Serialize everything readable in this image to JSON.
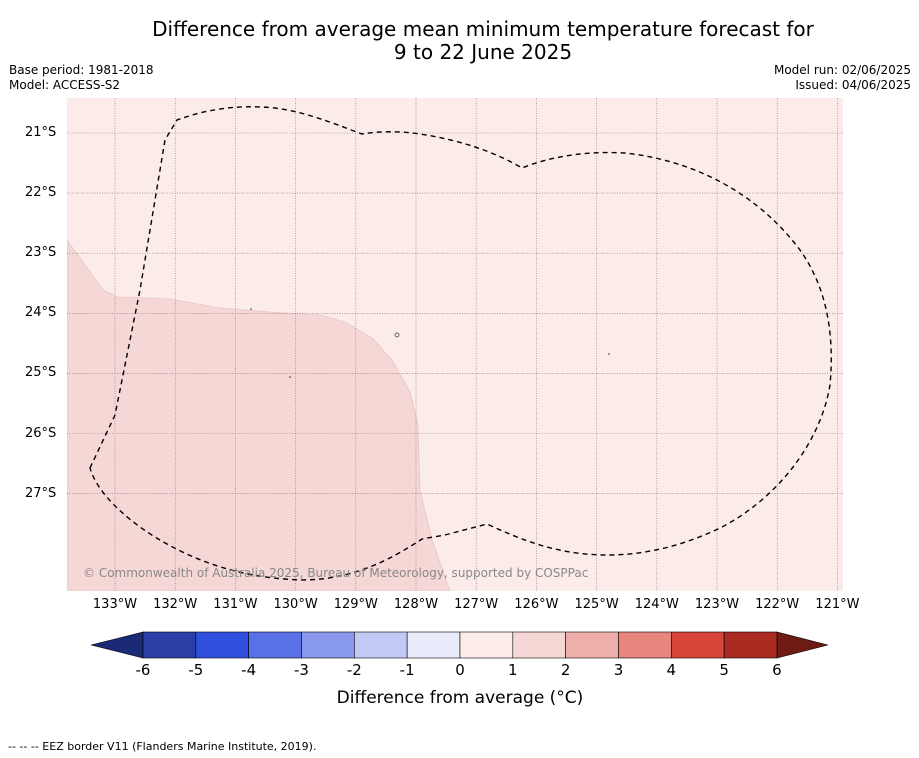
{
  "title": {
    "line1": "Difference from average mean minimum temperature forecast for",
    "line2": "9 to 22 June 2025"
  },
  "meta_left": {
    "base_period": "Base period: 1981-2018",
    "model": "Model: ACCESS-S2"
  },
  "meta_right": {
    "model_run": "Model run: 02/06/2025",
    "issued": "Issued: 04/06/2025"
  },
  "map": {
    "lat_labels": [
      "21°S",
      "22°S",
      "23°S",
      "24°S",
      "25°S",
      "26°S",
      "27°S"
    ],
    "lon_labels": [
      "133°W",
      "132°W",
      "131°W",
      "130°W",
      "129°W",
      "128°W",
      "127°W",
      "126°W",
      "125°W",
      "124°W",
      "123°W",
      "122°W",
      "121°W"
    ],
    "copyright": "© Commonwealth of Australia 2025, Bureau of Meteorology, supported by COSPPac",
    "regions": [
      {
        "category": "0 to 1",
        "color": "#fbecea"
      },
      {
        "category": "1 to 2",
        "color": "#f5d7d6"
      }
    ]
  },
  "colorbar": {
    "label": "Difference from average (°C)",
    "ticks": [
      "-6",
      "-5",
      "-4",
      "-3",
      "-2",
      "-1",
      "0",
      "1",
      "2",
      "3",
      "4",
      "5",
      "6"
    ],
    "under_color": "#1a2a75",
    "over_color": "#6e1a15",
    "colors": [
      "#2a3fa6",
      "#2f50de",
      "#5871e6",
      "#8898ec",
      "#c3c9f4",
      "#e9ebfa",
      "#fcedeb",
      "#f5d7d6",
      "#eeaea9",
      "#e8867d",
      "#d8463a",
      "#ab2a22"
    ]
  },
  "footer": {
    "legend_text": "-- -- -- EEZ border V11 (Flanders Marine Institute, 2019)."
  }
}
